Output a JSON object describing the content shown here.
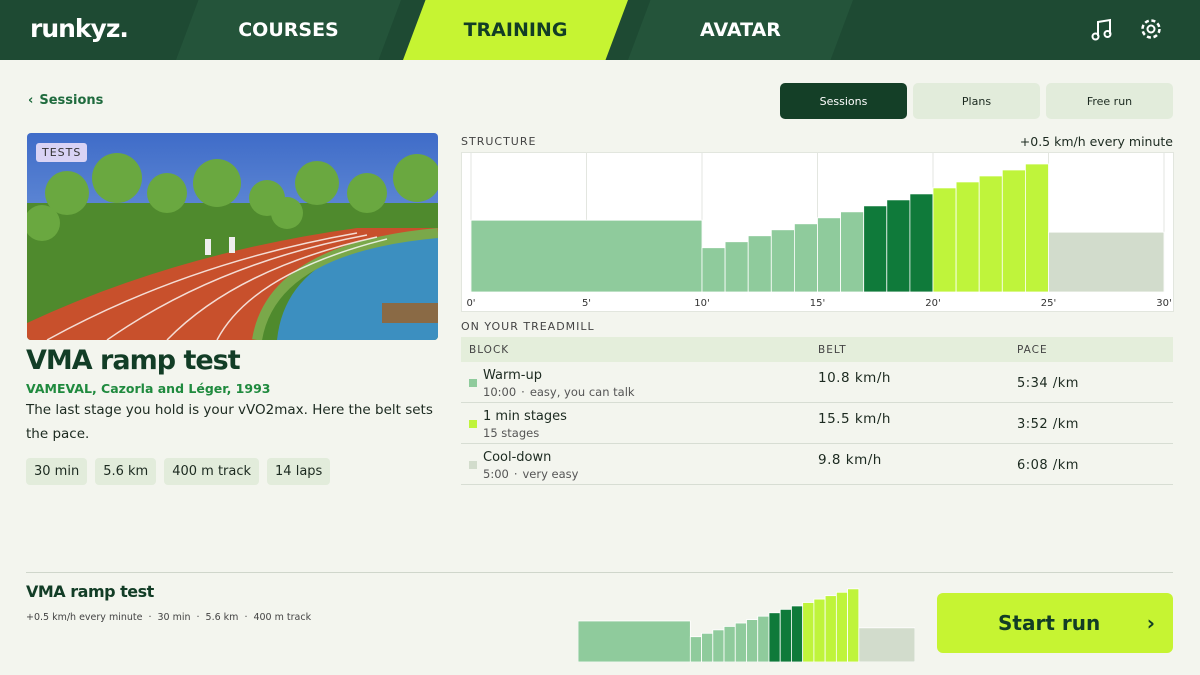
{
  "header": {
    "logo": "runkyz.",
    "tabs": [
      {
        "label": "COURSES",
        "active": false
      },
      {
        "label": "TRAINING",
        "active": true
      },
      {
        "label": "AVATAR",
        "active": false
      }
    ]
  },
  "back_link": "Sessions",
  "view_switch": [
    {
      "label": "Sessions",
      "active": true
    },
    {
      "label": "Plans",
      "active": false
    },
    {
      "label": "Free run",
      "active": false
    }
  ],
  "session": {
    "tag": "TESTS",
    "title": "VMA ramp test",
    "source": "VAMEVAL, Cazorla and Léger, 1993",
    "description": "The last stage you hold is your vVO2max. Here the belt sets the pace.",
    "chips": [
      "30 min",
      "5.6 km",
      "400 m track",
      "14 laps"
    ]
  },
  "structure": {
    "label": "STRUCTURE",
    "note": "+0.5 km/h every minute",
    "xlim": [
      0,
      30
    ],
    "ylim": [
      4.8,
      16.5
    ],
    "xticks": [
      {
        "value": 0,
        "label": "0'"
      },
      {
        "value": 5,
        "label": "5'"
      },
      {
        "value": 10,
        "label": "10'"
      },
      {
        "value": 15,
        "label": "15'"
      },
      {
        "value": 20,
        "label": "20'"
      },
      {
        "value": 25,
        "label": "25'"
      },
      {
        "value": 30,
        "label": "30'"
      }
    ],
    "segments": [
      {
        "start": 0,
        "end": 10,
        "speed": 10.8,
        "color": "#8fcb9c"
      },
      {
        "start": 10,
        "end": 11,
        "speed": 8.5,
        "color": "#8fcb9c"
      },
      {
        "start": 11,
        "end": 12,
        "speed": 9,
        "color": "#8fcb9c"
      },
      {
        "start": 12,
        "end": 13,
        "speed": 9.5,
        "color": "#8fcb9c"
      },
      {
        "start": 13,
        "end": 14,
        "speed": 10,
        "color": "#8fcb9c"
      },
      {
        "start": 14,
        "end": 15,
        "speed": 10.5,
        "color": "#8fcb9c"
      },
      {
        "start": 15,
        "end": 16,
        "speed": 11,
        "color": "#8fcb9c"
      },
      {
        "start": 16,
        "end": 17,
        "speed": 11.5,
        "color": "#8fcb9c"
      },
      {
        "start": 17,
        "end": 18,
        "speed": 12,
        "color": "#0f7a3a"
      },
      {
        "start": 18,
        "end": 19,
        "speed": 12.5,
        "color": "#0f7a3a"
      },
      {
        "start": 19,
        "end": 20,
        "speed": 13,
        "color": "#0f7a3a"
      },
      {
        "start": 20,
        "end": 21,
        "speed": 13.5,
        "color": "#bff43b"
      },
      {
        "start": 21,
        "end": 22,
        "speed": 14,
        "color": "#bff43b"
      },
      {
        "start": 22,
        "end": 23,
        "speed": 14.5,
        "color": "#bff43b"
      },
      {
        "start": 23,
        "end": 24,
        "speed": 15,
        "color": "#bff43b"
      },
      {
        "start": 24,
        "end": 25,
        "speed": 15.5,
        "color": "#bff43b"
      },
      {
        "start": 25,
        "end": 30,
        "speed": 9.8,
        "color": "#d2dccc"
      }
    ]
  },
  "treadmill": {
    "label": "ON YOUR TREADMILL",
    "columns": [
      "BLOCK",
      "BELT",
      "PACE"
    ],
    "rows": [
      {
        "block": "Warm-up",
        "duration": "10:00",
        "note": "easy, you can talk",
        "belt": "10.8 km/h",
        "pace": "5:34 /km",
        "color": "#8fcb9c"
      },
      {
        "block": "1 min stages",
        "duration": "15 stages",
        "note": null,
        "belt": "15.5 km/h",
        "pace": "3:52 /km",
        "color": "#bff43b"
      },
      {
        "block": "Cool-down",
        "duration": "5:00",
        "note": "very easy",
        "belt": "9.8 km/h",
        "pace": "6:08 /km",
        "color": "#d2dccc"
      }
    ]
  },
  "footer": {
    "title": "VMA ramp test",
    "meta": [
      "+0.5 km/h every minute",
      "30 min",
      "5.6 km",
      "400 m track"
    ],
    "button": "Start run"
  }
}
